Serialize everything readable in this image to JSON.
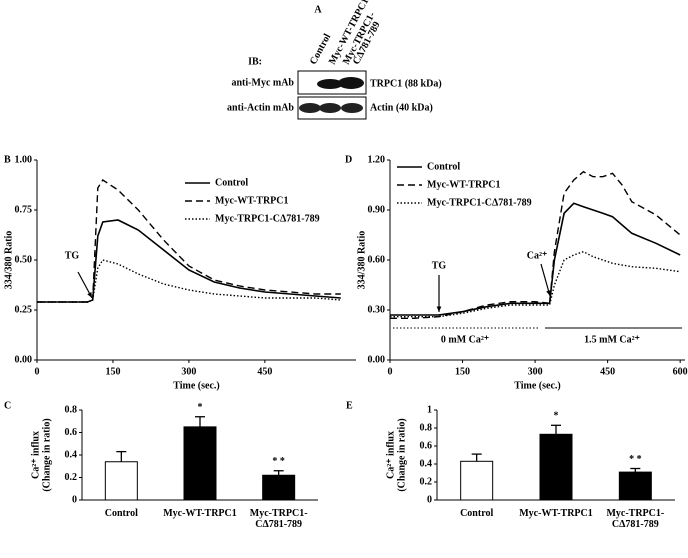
{
  "blot": {
    "label": "A",
    "ib": "IB:",
    "columns": [
      [
        "Control"
      ],
      [
        "Myc-WT-TRPC1"
      ],
      [
        "Myc-TRPC1-",
        "CΔ781-789"
      ]
    ],
    "rows": [
      {
        "antibody": "anti-Myc mAb",
        "band": "TRPC1 (88 kDa)"
      },
      {
        "antibody": "anti-Actin mAb",
        "band": "Actin (40 kDa)"
      }
    ]
  },
  "chart_data": [
    {
      "type": "line",
      "panel": "B",
      "xlabel": "Time (sec.)",
      "ylabel": "334/380 Ratio",
      "x": [
        0,
        100,
        110,
        120,
        130,
        160,
        200,
        250,
        300,
        350,
        400,
        450,
        500,
        550,
        600
      ],
      "series": [
        {
          "name": "Control",
          "color": "#000000",
          "style": "solid",
          "values": [
            0.29,
            0.29,
            0.3,
            0.62,
            0.69,
            0.7,
            0.65,
            0.55,
            0.45,
            0.39,
            0.36,
            0.34,
            0.33,
            0.32,
            0.31
          ]
        },
        {
          "name": "Myc-WT-TRPC1",
          "color": "#000000",
          "style": "dashed",
          "values": [
            0.29,
            0.29,
            0.3,
            0.86,
            0.9,
            0.85,
            0.75,
            0.6,
            0.47,
            0.4,
            0.37,
            0.35,
            0.34,
            0.33,
            0.33
          ]
        },
        {
          "name": "Myc-TRPC1-CΔ781-789",
          "color": "#000000",
          "style": "dotted",
          "values": [
            0.29,
            0.29,
            0.3,
            0.46,
            0.5,
            0.48,
            0.43,
            0.38,
            0.35,
            0.33,
            0.32,
            0.31,
            0.31,
            0.31,
            0.3
          ]
        }
      ],
      "xlim": [
        0,
        630
      ],
      "xticks": [
        0,
        150,
        300,
        450
      ],
      "ylim": [
        0,
        1
      ],
      "yticks": [
        {
          "value": 0,
          "label": "0.00"
        },
        {
          "value": 0.25,
          "label": "0.25"
        },
        {
          "value": 0.5,
          "label": "0.50"
        },
        {
          "value": 0.75,
          "label": "0.75"
        },
        {
          "value": 1,
          "label": "1.00"
        }
      ],
      "annotations": [
        "TG"
      ]
    },
    {
      "type": "line",
      "panel": "D",
      "xlabel": "Time (sec.)",
      "ylabel": "334/380 Ratio",
      "x": [
        0,
        50,
        100,
        150,
        200,
        250,
        300,
        330,
        340,
        360,
        380,
        400,
        420,
        440,
        460,
        480,
        500,
        550,
        600
      ],
      "series": [
        {
          "name": "Control",
          "color": "#000000",
          "style": "solid",
          "values": [
            0.27,
            0.27,
            0.27,
            0.29,
            0.32,
            0.34,
            0.34,
            0.34,
            0.6,
            0.88,
            0.94,
            0.92,
            0.9,
            0.88,
            0.86,
            0.81,
            0.76,
            0.7,
            0.63
          ]
        },
        {
          "name": "Myc-WT-TRPC1",
          "color": "#000000",
          "style": "dashed",
          "values": [
            0.25,
            0.25,
            0.26,
            0.29,
            0.33,
            0.35,
            0.35,
            0.34,
            0.65,
            1.0,
            1.08,
            1.13,
            1.1,
            1.1,
            1.12,
            1.05,
            0.95,
            0.87,
            0.75
          ]
        },
        {
          "name": "Myc-TRPC1-CΔ781-789",
          "color": "#000000",
          "style": "dotted",
          "values": [
            0.26,
            0.26,
            0.26,
            0.28,
            0.31,
            0.33,
            0.33,
            0.33,
            0.45,
            0.6,
            0.63,
            0.65,
            0.62,
            0.6,
            0.58,
            0.57,
            0.56,
            0.55,
            0.53
          ]
        }
      ],
      "xlim": [
        0,
        610
      ],
      "xticks": [
        0,
        150,
        300,
        450,
        600
      ],
      "ylim": [
        0,
        1.2
      ],
      "yticks": [
        {
          "value": 0,
          "label": "0.00"
        },
        {
          "value": 0.3,
          "label": "0.30"
        },
        {
          "value": 0.6,
          "label": "0.60"
        },
        {
          "value": 0.9,
          "label": "0.90"
        },
        {
          "value": 1.2,
          "label": "1.20"
        }
      ],
      "annotations": [
        "TG",
        "Ca²⁺",
        "0 mM Ca²⁺",
        "1.5 mM Ca²⁺"
      ]
    },
    {
      "type": "bar",
      "panel": "C",
      "ylabel": [
        "Ca²⁺ influx",
        "(Change in ratio)"
      ],
      "categories": [
        "Control",
        "Myc-WT-TRPC1",
        "Myc-TRPC1-CΔ781-789"
      ],
      "values": [
        0.34,
        0.65,
        0.22
      ],
      "errors": [
        0.09,
        0.09,
        0.04
      ],
      "colors": [
        "#ffffff",
        "#000000",
        "#000000"
      ],
      "significance": [
        null,
        "*",
        "* *"
      ],
      "ylim": [
        0,
        0.8
      ],
      "yticks": [
        0,
        0.2,
        0.4,
        0.6,
        0.8
      ]
    },
    {
      "type": "bar",
      "panel": "E",
      "ylabel": [
        "Ca²⁺ influx",
        "(Change in ratio)"
      ],
      "categories": [
        "Control",
        "Myc-WT-TRPC1",
        "Myc-TRPC1-CΔ781-789"
      ],
      "values": [
        0.43,
        0.73,
        0.31
      ],
      "errors": [
        0.08,
        0.1,
        0.04
      ],
      "colors": [
        "#ffffff",
        "#000000",
        "#000000"
      ],
      "significance": [
        null,
        "*",
        "* *"
      ],
      "ylim": [
        0,
        1
      ],
      "yticks": [
        0,
        0.2,
        0.4,
        0.6,
        0.8,
        1
      ]
    }
  ]
}
